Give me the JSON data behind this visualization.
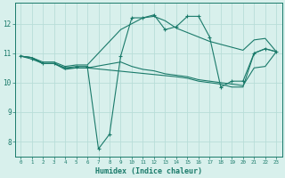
{
  "xlabel": "Humidex (Indice chaleur)",
  "ylabel": "",
  "bg_color": "#d8f0ec",
  "grid_color": "#b8ddd8",
  "line_color": "#1a7a6a",
  "xlim": [
    -0.5,
    23.5
  ],
  "ylim": [
    7.5,
    12.7
  ],
  "xticks": [
    0,
    1,
    2,
    3,
    4,
    5,
    6,
    7,
    8,
    9,
    10,
    11,
    12,
    13,
    14,
    15,
    16,
    17,
    18,
    19,
    20,
    21,
    22,
    23
  ],
  "yticks": [
    8,
    9,
    10,
    11,
    12
  ],
  "lines": [
    {
      "x": [
        0,
        1,
        2,
        3,
        4,
        5,
        6,
        7,
        8,
        9,
        10,
        11,
        12,
        13,
        14,
        15,
        16,
        17,
        18,
        19,
        20,
        21,
        22,
        23
      ],
      "y": [
        10.9,
        10.8,
        10.65,
        10.65,
        10.5,
        10.55,
        10.55,
        7.75,
        8.25,
        10.9,
        12.2,
        12.2,
        12.3,
        11.8,
        11.9,
        12.25,
        12.25,
        11.55,
        9.85,
        10.05,
        10.05,
        11.0,
        11.15,
        11.05
      ],
      "marker": true
    },
    {
      "x": [
        0,
        1,
        2,
        3,
        4,
        5,
        6,
        9,
        10,
        11,
        12,
        13,
        14,
        15,
        16,
        17,
        18,
        19,
        20,
        21,
        22,
        23
      ],
      "y": [
        10.9,
        10.85,
        10.65,
        10.65,
        10.45,
        10.5,
        10.5,
        10.7,
        10.55,
        10.45,
        10.4,
        10.3,
        10.25,
        10.2,
        10.1,
        10.05,
        10.0,
        9.95,
        9.9,
        10.5,
        10.55,
        11.05
      ],
      "marker": false
    },
    {
      "x": [
        0,
        1,
        2,
        3,
        4,
        5,
        6,
        9,
        10,
        11,
        12,
        13,
        14,
        15,
        16,
        17,
        18,
        19,
        20,
        21,
        22,
        23
      ],
      "y": [
        10.9,
        10.85,
        10.7,
        10.7,
        10.55,
        10.6,
        10.6,
        11.8,
        12.0,
        12.2,
        12.25,
        12.1,
        11.85,
        11.7,
        11.55,
        11.4,
        11.3,
        11.2,
        11.1,
        11.45,
        11.5,
        11.05
      ],
      "marker": false
    },
    {
      "x": [
        0,
        1,
        2,
        3,
        4,
        5,
        6,
        14,
        15,
        16,
        17,
        18,
        19,
        20,
        21,
        22,
        23
      ],
      "y": [
        10.9,
        10.85,
        10.65,
        10.65,
        10.5,
        10.5,
        10.5,
        10.2,
        10.15,
        10.05,
        10.0,
        9.95,
        9.85,
        9.85,
        11.0,
        11.15,
        11.05
      ],
      "marker": false
    }
  ]
}
